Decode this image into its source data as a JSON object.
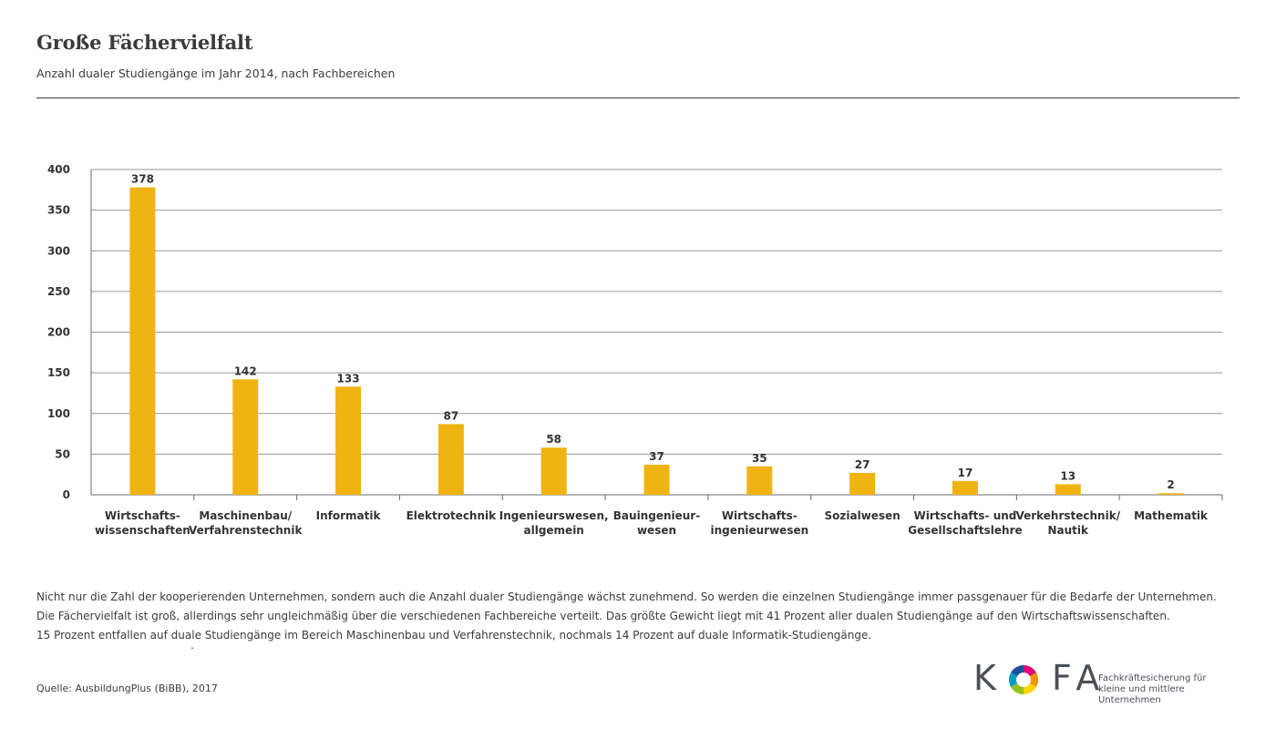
{
  "header": {
    "title": "Große Fächervielfalt",
    "subtitle": "Anzahl dualer Studiengänge im Jahr 2014, nach Fachbereichen"
  },
  "chart_data": {
    "type": "bar",
    "title": "Große Fächervielfalt",
    "subtitle": "Anzahl dualer Studiengänge im Jahr 2014, nach Fachbereichen",
    "xlabel": "",
    "ylabel": "",
    "ylim": [
      0,
      400
    ],
    "yticks": [
      0,
      50,
      100,
      150,
      200,
      250,
      300,
      350,
      400
    ],
    "grid": true,
    "bar_color": "#f0b412",
    "categories": [
      [
        "Wirtschafts-",
        "wissenschaften"
      ],
      [
        "Maschinenbau/",
        "Verfahrenstechnik"
      ],
      [
        "Informatik"
      ],
      [
        "Elektrotechnik"
      ],
      [
        "Ingenieurswesen,",
        "allgemein"
      ],
      [
        "Bauingenieur-",
        "wesen"
      ],
      [
        "Wirtschafts-",
        "ingenieurwesen"
      ],
      [
        "Sozialwesen"
      ],
      [
        "Wirtschafts- und",
        "Gesellschaftslehre"
      ],
      [
        "Verkehrstechnik/",
        "Nautik"
      ],
      [
        "Mathematik"
      ]
    ],
    "values": [
      378,
      142,
      133,
      87,
      58,
      37,
      35,
      27,
      17,
      13,
      2
    ]
  },
  "description": [
    "Nicht nur die Zahl der kooperierenden Unternehmen, sondern auch die Anzahl dualer Studiengänge wächst zunehmend. So werden die einzelnen Studiengänge immer passgenauer für die Bedarfe der Unternehmen.",
    "Die Fächervielfalt ist groß, allerdings sehr ungleichmäßig über die verschiedenen Fachbereiche verteilt. Das größte Gewicht liegt mit 41 Prozent aller dualen Studiengänge auf den Wirtschaftswissenschaften.",
    "15 Prozent entfallen auf duale Studiengänge im Bereich Maschinenbau und Verfahrenstechnik, nochmals 14 Prozent auf duale Informatik-Studiengänge."
  ],
  "stray_dot": ".",
  "source": "Quelle: AusbildungPlus (BiBB), 2017",
  "logo": {
    "letter_k": "K",
    "letters_fa": "FA",
    "icon": "kofa-color-ring-icon",
    "tagline_line1": "Fachkräftesicherung für",
    "tagline_line2": "kleine und mittlere Unternehmen",
    "text_color": "#4a4f57"
  }
}
